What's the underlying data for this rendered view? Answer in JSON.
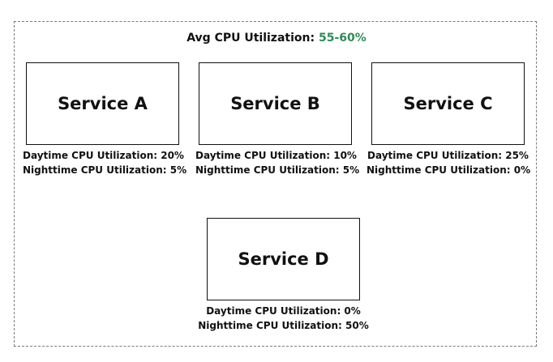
{
  "header": {
    "prefix": "Avg CPU Utilization: ",
    "value": "55-60%",
    "accent_color": "#2e8b57"
  },
  "services": [
    {
      "name": "Service A",
      "daytime": "Daytime CPU Utilization: 20%",
      "nighttime": "Nighttime CPU Utilization: 5%"
    },
    {
      "name": "Service B",
      "daytime": "Daytime CPU Utilization: 10%",
      "nighttime": "Nighttime CPU Utilization: 5%"
    },
    {
      "name": "Service C",
      "daytime": "Daytime CPU Utilization: 25%",
      "nighttime": "Nighttime CPU Utilization: 0%"
    },
    {
      "name": "Service D",
      "daytime": "Daytime CPU Utilization: 0%",
      "nighttime": "Nighttime CPU Utilization: 50%"
    }
  ]
}
